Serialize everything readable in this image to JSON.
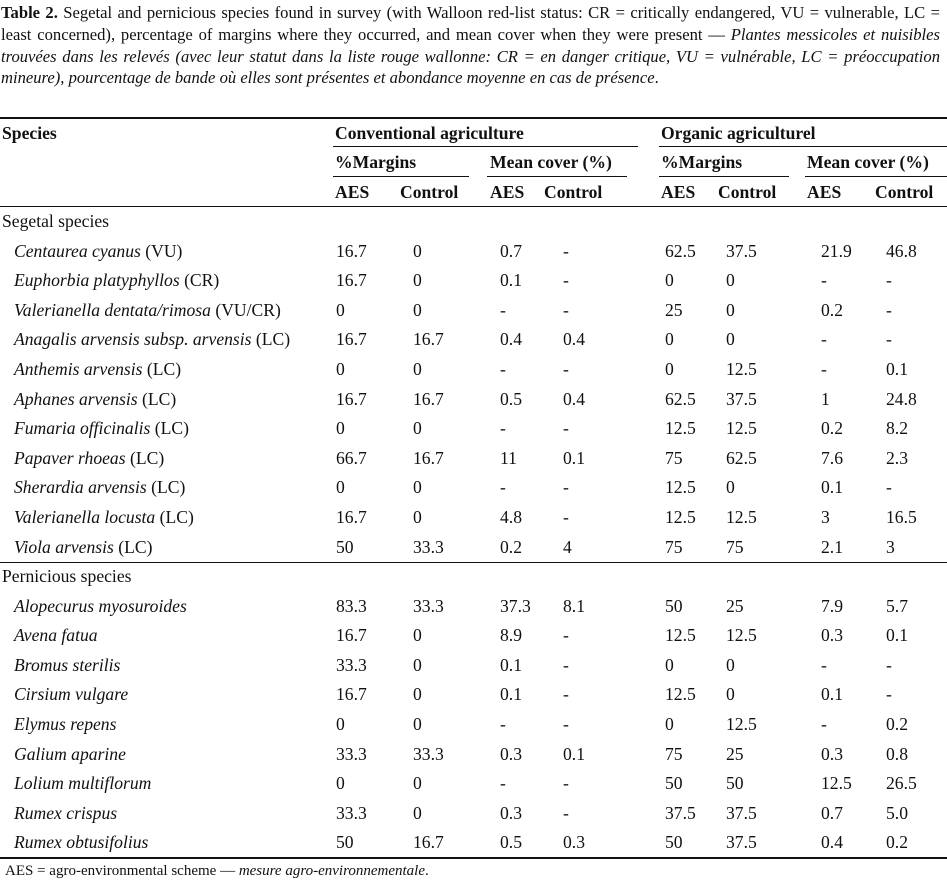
{
  "caption": {
    "label": "Table 2.",
    "english": "Segetal and pernicious species found in survey (with Walloon red-list status: CR = critically endangered, VU = vulnerable, LC = least concerned), percentage of margins where they occurred, and mean cover when they were present",
    "separator": " — ",
    "french": "Plantes messicoles et nuisibles trouvées dans les relevés (avec leur statut dans la liste rouge wallonne: CR = en danger critique, VU = vulnérable, LC = préoccupation mineure), pourcentage de bande où elles sont présentes et abondance moyenne en cas de présence",
    "end": "."
  },
  "header": {
    "species": "Species",
    "group_conventional": "Conventional agriculture",
    "group_organic": "Organic agriculturel",
    "sub_margins": "%Margins",
    "sub_cover": "Mean cover (%)",
    "aes": "AES",
    "control": "Control"
  },
  "sections": [
    {
      "title": "Segetal species",
      "rows": [
        {
          "name": "Centaurea cyanus",
          "status": " (VU)",
          "values": [
            "16.7",
            "0",
            "0.7",
            "-",
            "62.5",
            "37.5",
            "21.9",
            "46.8"
          ]
        },
        {
          "name": "Euphorbia platyphyllos",
          "status": " (CR)",
          "values": [
            "16.7",
            "0",
            "0.1",
            "-",
            "0",
            "0",
            "-",
            "-"
          ]
        },
        {
          "name": "Valerianella dentata/rimosa",
          "status": " (VU/CR)",
          "values": [
            "0",
            "0",
            "-",
            "-",
            "25",
            "0",
            "0.2",
            "-"
          ]
        },
        {
          "name": "Anagalis arvensis subsp. arvensis",
          "status": " (LC)",
          "values": [
            "16.7",
            "16.7",
            "0.4",
            "0.4",
            "0",
            "0",
            "-",
            "-"
          ]
        },
        {
          "name": "Anthemis arvensis",
          "status": " (LC)",
          "values": [
            "0",
            "0",
            "-",
            "-",
            "0",
            "12.5",
            "-",
            "0.1"
          ]
        },
        {
          "name": "Aphanes arvensis",
          "status": " (LC)",
          "values": [
            "16.7",
            "16.7",
            "0.5",
            "0.4",
            "62.5",
            "37.5",
            "1",
            "24.8"
          ]
        },
        {
          "name": "Fumaria officinalis",
          "status": " (LC)",
          "values": [
            "0",
            "0",
            "-",
            "-",
            "12.5",
            "12.5",
            "0.2",
            "8.2"
          ]
        },
        {
          "name": "Papaver rhoeas",
          "status": " (LC)",
          "values": [
            "66.7",
            "16.7",
            "11",
            "0.1",
            "75",
            "62.5",
            "7.6",
            "2.3"
          ]
        },
        {
          "name": "Sherardia arvensis",
          "status": " (LC)",
          "values": [
            "0",
            "0",
            "-",
            "-",
            "12.5",
            "0",
            "0.1",
            "-"
          ]
        },
        {
          "name": "Valerianella locusta",
          "status": " (LC)",
          "values": [
            "16.7",
            "0",
            "4.8",
            "-",
            "12.5",
            "12.5",
            "3",
            "16.5"
          ]
        },
        {
          "name": "Viola arvensis",
          "status": " (LC)",
          "values": [
            "50",
            "33.3",
            "0.2",
            "4",
            "75",
            "75",
            "2.1",
            "3"
          ]
        }
      ]
    },
    {
      "title": "Pernicious species",
      "rows": [
        {
          "name": "Alopecurus myosuroides",
          "status": "",
          "values": [
            "83.3",
            "33.3",
            "37.3",
            "8.1",
            "50",
            "25",
            "7.9",
            "5.7"
          ]
        },
        {
          "name": "Avena fatua",
          "status": "",
          "values": [
            "16.7",
            "0",
            "8.9",
            "-",
            "12.5",
            "12.5",
            "0.3",
            "0.1"
          ]
        },
        {
          "name": "Bromus sterilis",
          "status": "",
          "values": [
            "33.3",
            "0",
            "0.1",
            "-",
            "0",
            "0",
            "-",
            "-"
          ]
        },
        {
          "name": "Cirsium vulgare",
          "status": "",
          "values": [
            "16.7",
            "0",
            "0.1",
            "-",
            "12.5",
            "0",
            "0.1",
            "-"
          ]
        },
        {
          "name": "Elymus repens",
          "status": "",
          "values": [
            "0",
            "0",
            "-",
            "-",
            "0",
            "12.5",
            "-",
            "0.2"
          ]
        },
        {
          "name": "Galium aparine",
          "status": "",
          "values": [
            "33.3",
            "33.3",
            "0.3",
            "0.1",
            "75",
            "25",
            "0.3",
            "0.8"
          ]
        },
        {
          "name": "Lolium multiflorum",
          "status": "",
          "values": [
            "0",
            "0",
            "-",
            "-",
            "50",
            "50",
            "12.5",
            "26.5"
          ]
        },
        {
          "name": "Rumex crispus",
          "status": "",
          "values": [
            "33.3",
            "0",
            "0.3",
            "-",
            "37.5",
            "37.5",
            "0.7",
            "5.0"
          ]
        },
        {
          "name": "Rumex obtusifolius",
          "status": "",
          "values": [
            "50",
            "16.7",
            "0.5",
            "0.3",
            "50",
            "37.5",
            "0.4",
            "0.2"
          ]
        }
      ]
    }
  ],
  "footnote": {
    "english": "AES = agro-environmental scheme",
    "separator": " — ",
    "french": "mesure agro-environnementale",
    "end": "."
  }
}
